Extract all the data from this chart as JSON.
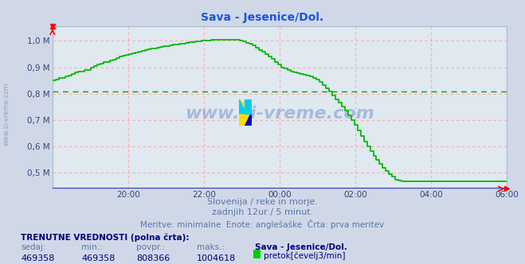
{
  "title": "Sava - Jesenice/Dol.",
  "title_color": "#1a56db",
  "bg_color": "#d0d8e8",
  "plot_bg_color": "#e0e8f0",
  "line_color": "#00bb00",
  "avg_line_color": "#00aa00",
  "grid_color": "#ffaaaa",
  "bottom_line_color": "#4444cc",
  "xlabel_texts": [
    "20:00",
    "22:00",
    "00:00",
    "02:00",
    "04:00",
    "06:00"
  ],
  "xtick_pos": [
    24,
    48,
    72,
    96,
    120,
    144
  ],
  "ylabel_texts": [
    "0,5 M",
    "0,6 M",
    "0,7 M",
    "0,8 M",
    "0,9 M",
    "1,0 M"
  ],
  "ytick_values": [
    500000,
    600000,
    700000,
    800000,
    900000,
    1000000
  ],
  "xmin": 0,
  "xmax": 144,
  "ymin": 440000,
  "ymax": 1055000,
  "avg_value": 808366,
  "text1": "Slovenija / reke in morje.",
  "text2": "zadnjih 12ur / 5 minut.",
  "text3": "Meritve: minimalne  Enote: anglešaške  Črta: prva meritev",
  "label_head": "TRENUTNE VREDNOSTI (polna črta):",
  "col_heads": [
    "sedaj:",
    "min.:",
    "povpr.:",
    "maks.:",
    "Sava - Jesenice/Dol."
  ],
  "col_vals": [
    "469358",
    "469358",
    "808366",
    "1004618"
  ],
  "legend_label": "pretok[čevelj3/min]",
  "watermark": "www.si-vreme.com",
  "data_y": [
    850000,
    855000,
    860000,
    860000,
    865000,
    870000,
    875000,
    880000,
    885000,
    885000,
    890000,
    890000,
    900000,
    905000,
    910000,
    915000,
    920000,
    920000,
    925000,
    930000,
    935000,
    940000,
    943000,
    946000,
    950000,
    953000,
    956000,
    960000,
    963000,
    966000,
    968000,
    970000,
    972000,
    975000,
    977000,
    979000,
    981000,
    983000,
    985000,
    987000,
    989000,
    990000,
    992000,
    994000,
    996000,
    998000,
    999000,
    1000000,
    1001000,
    1002000,
    1003000,
    1004000,
    1004500,
    1004618,
    1004618,
    1004618,
    1004618,
    1004618,
    1004000,
    1002000,
    998000,
    993000,
    988000,
    983000,
    975000,
    965000,
    958000,
    950000,
    942000,
    933000,
    920000,
    910000,
    900000,
    895000,
    890000,
    885000,
    882000,
    879000,
    876000,
    873000,
    870000,
    865000,
    860000,
    855000,
    845000,
    833000,
    820000,
    808000,
    795000,
    780000,
    765000,
    750000,
    735000,
    718000,
    700000,
    682000,
    662000,
    641000,
    620000,
    600000,
    583000,
    566000,
    549000,
    534000,
    520000,
    507000,
    496000,
    485000,
    475000,
    470000,
    469358,
    469358,
    469358,
    469358,
    469358,
    469358,
    469358,
    469358,
    469358,
    469358,
    469358,
    469358,
    469358,
    469358,
    469358,
    469358,
    469358,
    469358,
    469358,
    469358,
    469358,
    469358,
    469358,
    469358,
    469358,
    469358,
    469358,
    469358,
    469358,
    469358,
    469358,
    469358,
    469358,
    469358
  ]
}
